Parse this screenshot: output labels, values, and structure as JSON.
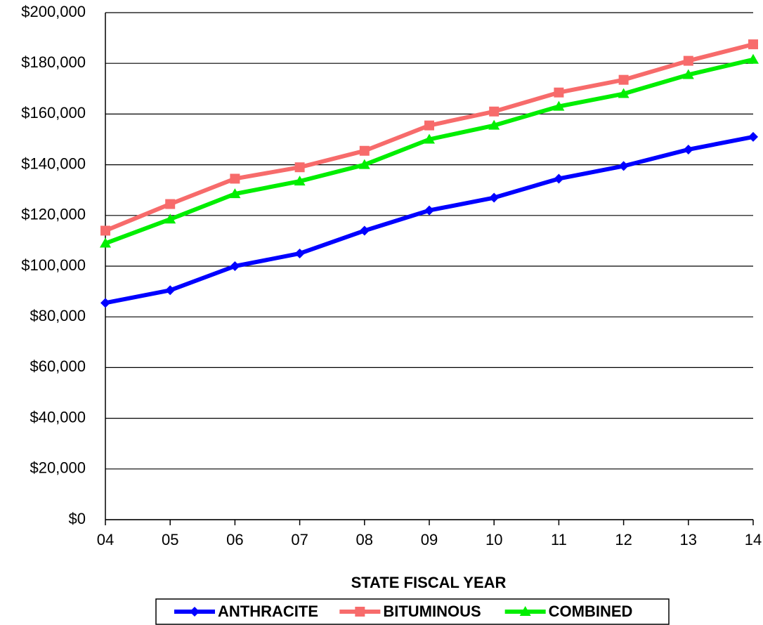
{
  "chart_data": {
    "type": "line",
    "x_label": "STATE FISCAL YEAR",
    "categories": [
      "04",
      "05",
      "06",
      "07",
      "08",
      "09",
      "10",
      "11",
      "12",
      "13",
      "14"
    ],
    "series": [
      {
        "name": "ANTHRACITE",
        "color": "#0000ff",
        "marker": "diamond",
        "values": [
          85500,
          90500,
          100000,
          105000,
          114000,
          122000,
          127000,
          134500,
          139500,
          146000,
          151000
        ]
      },
      {
        "name": "BITUMINOUS",
        "color": "#f76b6b",
        "marker": "square",
        "values": [
          114000,
          124500,
          134500,
          139000,
          145500,
          155500,
          161000,
          168500,
          173500,
          181000,
          187500
        ]
      },
      {
        "name": "COMBINED",
        "color": "#00ee00",
        "marker": "triangle",
        "values": [
          109000,
          118500,
          128500,
          133500,
          140000,
          150000,
          155500,
          163000,
          168000,
          175500,
          181500
        ]
      }
    ],
    "ylim": [
      0,
      200000
    ],
    "yticks": [
      {
        "value": 0,
        "label": "$0"
      },
      {
        "value": 20000,
        "label": "$20,000"
      },
      {
        "value": 40000,
        "label": "$40,000"
      },
      {
        "value": 60000,
        "label": "$60,000"
      },
      {
        "value": 80000,
        "label": "$80,000"
      },
      {
        "value": 100000,
        "label": "$100,000"
      },
      {
        "value": 120000,
        "label": "$120,000"
      },
      {
        "value": 140000,
        "label": "$140,000"
      },
      {
        "value": 160000,
        "label": "$160,000"
      },
      {
        "value": 180000,
        "label": "$180,000"
      },
      {
        "value": 200000,
        "label": "$200,000"
      }
    ],
    "grid": true,
    "legend": "bottom"
  }
}
